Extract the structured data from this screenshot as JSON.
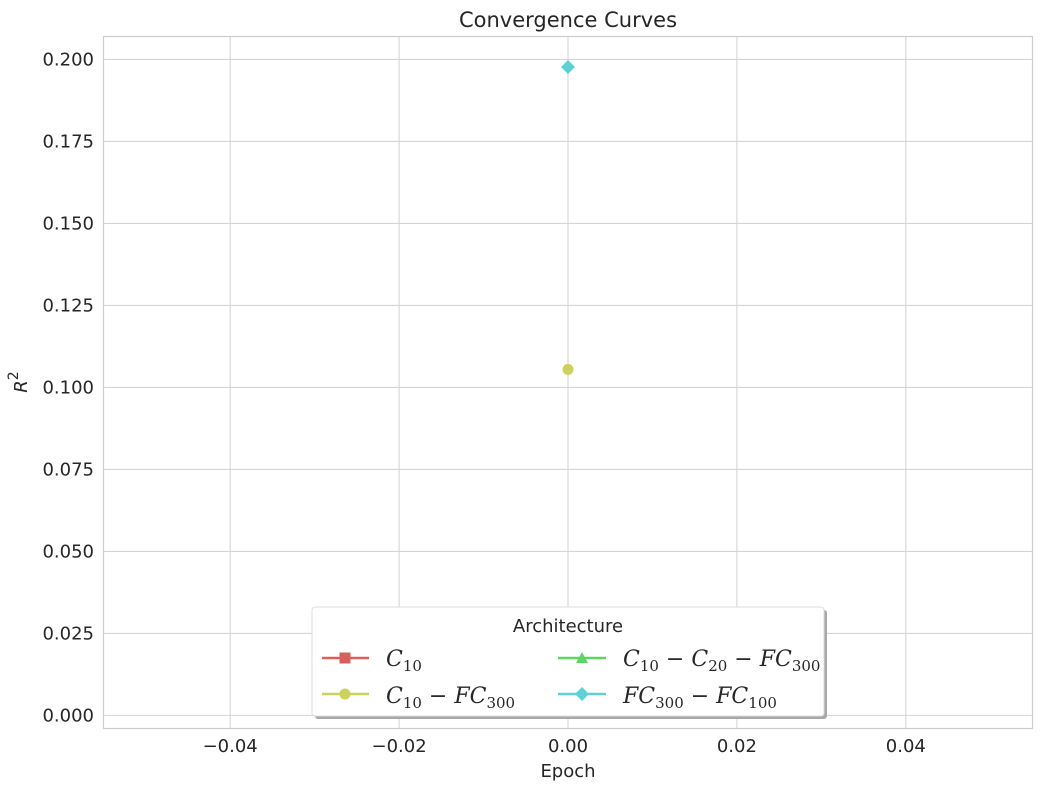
{
  "chart_data": {
    "type": "line",
    "title": "Convergence Curves",
    "xlabel": "Epoch",
    "ylabel": "R^2",
    "xlim": [
      -0.055,
      0.055
    ],
    "ylim": [
      -0.004,
      0.207
    ],
    "x_ticks": [
      -0.04,
      -0.02,
      0.0,
      0.02,
      0.04
    ],
    "x_tick_labels": [
      "−0.04",
      "−0.02",
      "0.00",
      "0.02",
      "0.04"
    ],
    "y_ticks": [
      0.0,
      0.025,
      0.05,
      0.075,
      0.1,
      0.125,
      0.15,
      0.175,
      0.2
    ],
    "y_tick_labels": [
      "0.000",
      "0.025",
      "0.050",
      "0.075",
      "0.100",
      "0.125",
      "0.150",
      "0.175",
      "0.200"
    ],
    "grid": true,
    "legend": {
      "title": "Architecture",
      "placement": "lower center",
      "columns": 2
    },
    "series": [
      {
        "name": "C_{10}",
        "color": "#d9605a",
        "marker": "square",
        "x": [
          0
        ],
        "y": [
          null
        ]
      },
      {
        "name": "C_{10}-FC_{300}",
        "color": "#cdd35a",
        "marker": "circle",
        "x": [
          0
        ],
        "y": [
          0.1055
        ]
      },
      {
        "name": "C_{10}-C_{20}-FC_{300}",
        "color": "#5cd65f",
        "marker": "triangle",
        "x": [
          0
        ],
        "y": [
          null
        ]
      },
      {
        "name": "FC_{300}-FC_{100}",
        "color": "#5cd2d6",
        "marker": "diamond",
        "x": [
          0
        ],
        "y": [
          0.1977
        ]
      }
    ]
  }
}
